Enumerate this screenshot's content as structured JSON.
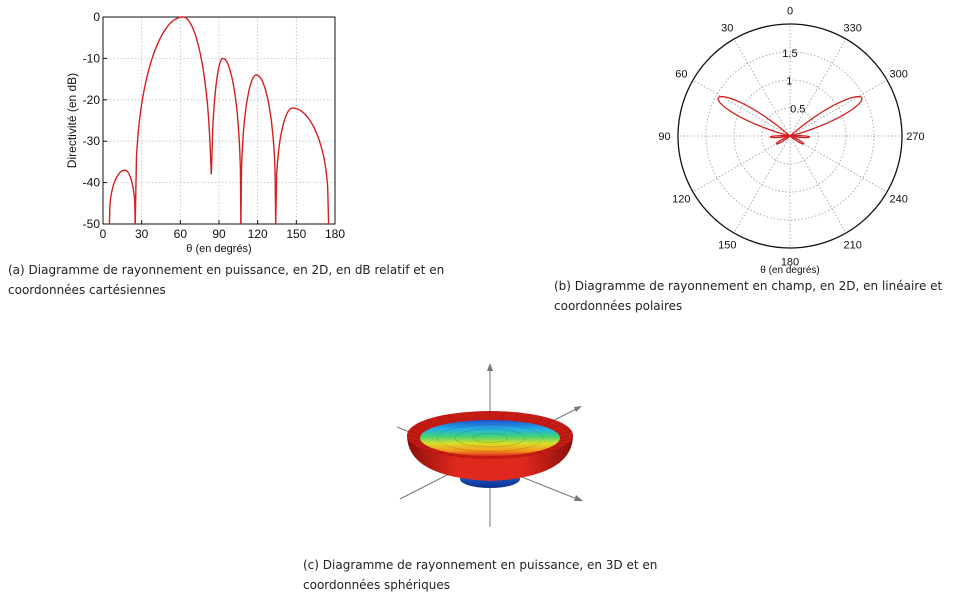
{
  "chart_data": [
    {
      "id": "a",
      "type": "line",
      "xlabel": "θ (en degrés)",
      "ylabel": "Directivité (en dB)",
      "xlim": [
        0,
        180
      ],
      "ylim": [
        -50,
        0
      ],
      "xticks": [
        0,
        30,
        60,
        90,
        120,
        150,
        180
      ],
      "yticks": [
        0,
        -10,
        -20,
        -30,
        -40,
        -50
      ],
      "grid": true,
      "line_color": "#d42020",
      "lobes": [
        {
          "start": 5,
          "end": 25,
          "peak_x": 17,
          "peak_y": -37
        },
        {
          "start": 25,
          "end": 84,
          "peak_x": 62,
          "peak_y": 0
        },
        {
          "start": 84,
          "end": 107,
          "peak_x": 93,
          "peak_y": -10
        },
        {
          "start": 107,
          "end": 134,
          "peak_x": 119,
          "peak_y": -14
        },
        {
          "start": 134,
          "end": 175,
          "peak_x": 147,
          "peak_y": -22
        }
      ]
    },
    {
      "id": "b",
      "type": "polar",
      "xlabel": "θ (en degrés)",
      "angle_ticks": [
        "0",
        "30",
        "60",
        "90",
        "120",
        "150",
        "180",
        "210",
        "240",
        "270",
        "300",
        "330"
      ],
      "radial_ticks": [
        "0.5",
        "1",
        "1.5"
      ],
      "rlim": [
        0,
        2
      ],
      "grid": true,
      "line_color": "#d42020",
      "lobes": [
        {
          "center_deg": 62,
          "peak_r": 1.45,
          "width_deg": 13
        },
        {
          "center_deg": 298,
          "peak_r": 1.45,
          "width_deg": 13
        },
        {
          "center_deg": 120,
          "peak_r": 0.28,
          "width_deg": 10
        },
        {
          "center_deg": 240,
          "peak_r": 0.28,
          "width_deg": 10
        },
        {
          "center_deg": 93,
          "peak_r": 0.35,
          "width_deg": 7
        },
        {
          "center_deg": 267,
          "peak_r": 0.35,
          "width_deg": 7
        }
      ]
    },
    {
      "id": "c",
      "type": "surface3d",
      "colormap": [
        "#1f4fd1",
        "#23b0e8",
        "#3fd27a",
        "#d8e02b",
        "#f59a1a",
        "#e0281e"
      ]
    }
  ],
  "captions": {
    "a": [
      "(a)  Diagramme  de rayonnement en puissance, en 2D, en dB relatif et en",
      "coordonnées cartésiennes"
    ],
    "b": [
      "(b) Diagramme de rayonnement en champ,  en 2D, en linéaire et",
      "coordonnées polaires"
    ],
    "c": [
      "(c) Diagramme  de rayonnement en puissance, en 3D et en",
      "coordonnées sphériques"
    ]
  }
}
